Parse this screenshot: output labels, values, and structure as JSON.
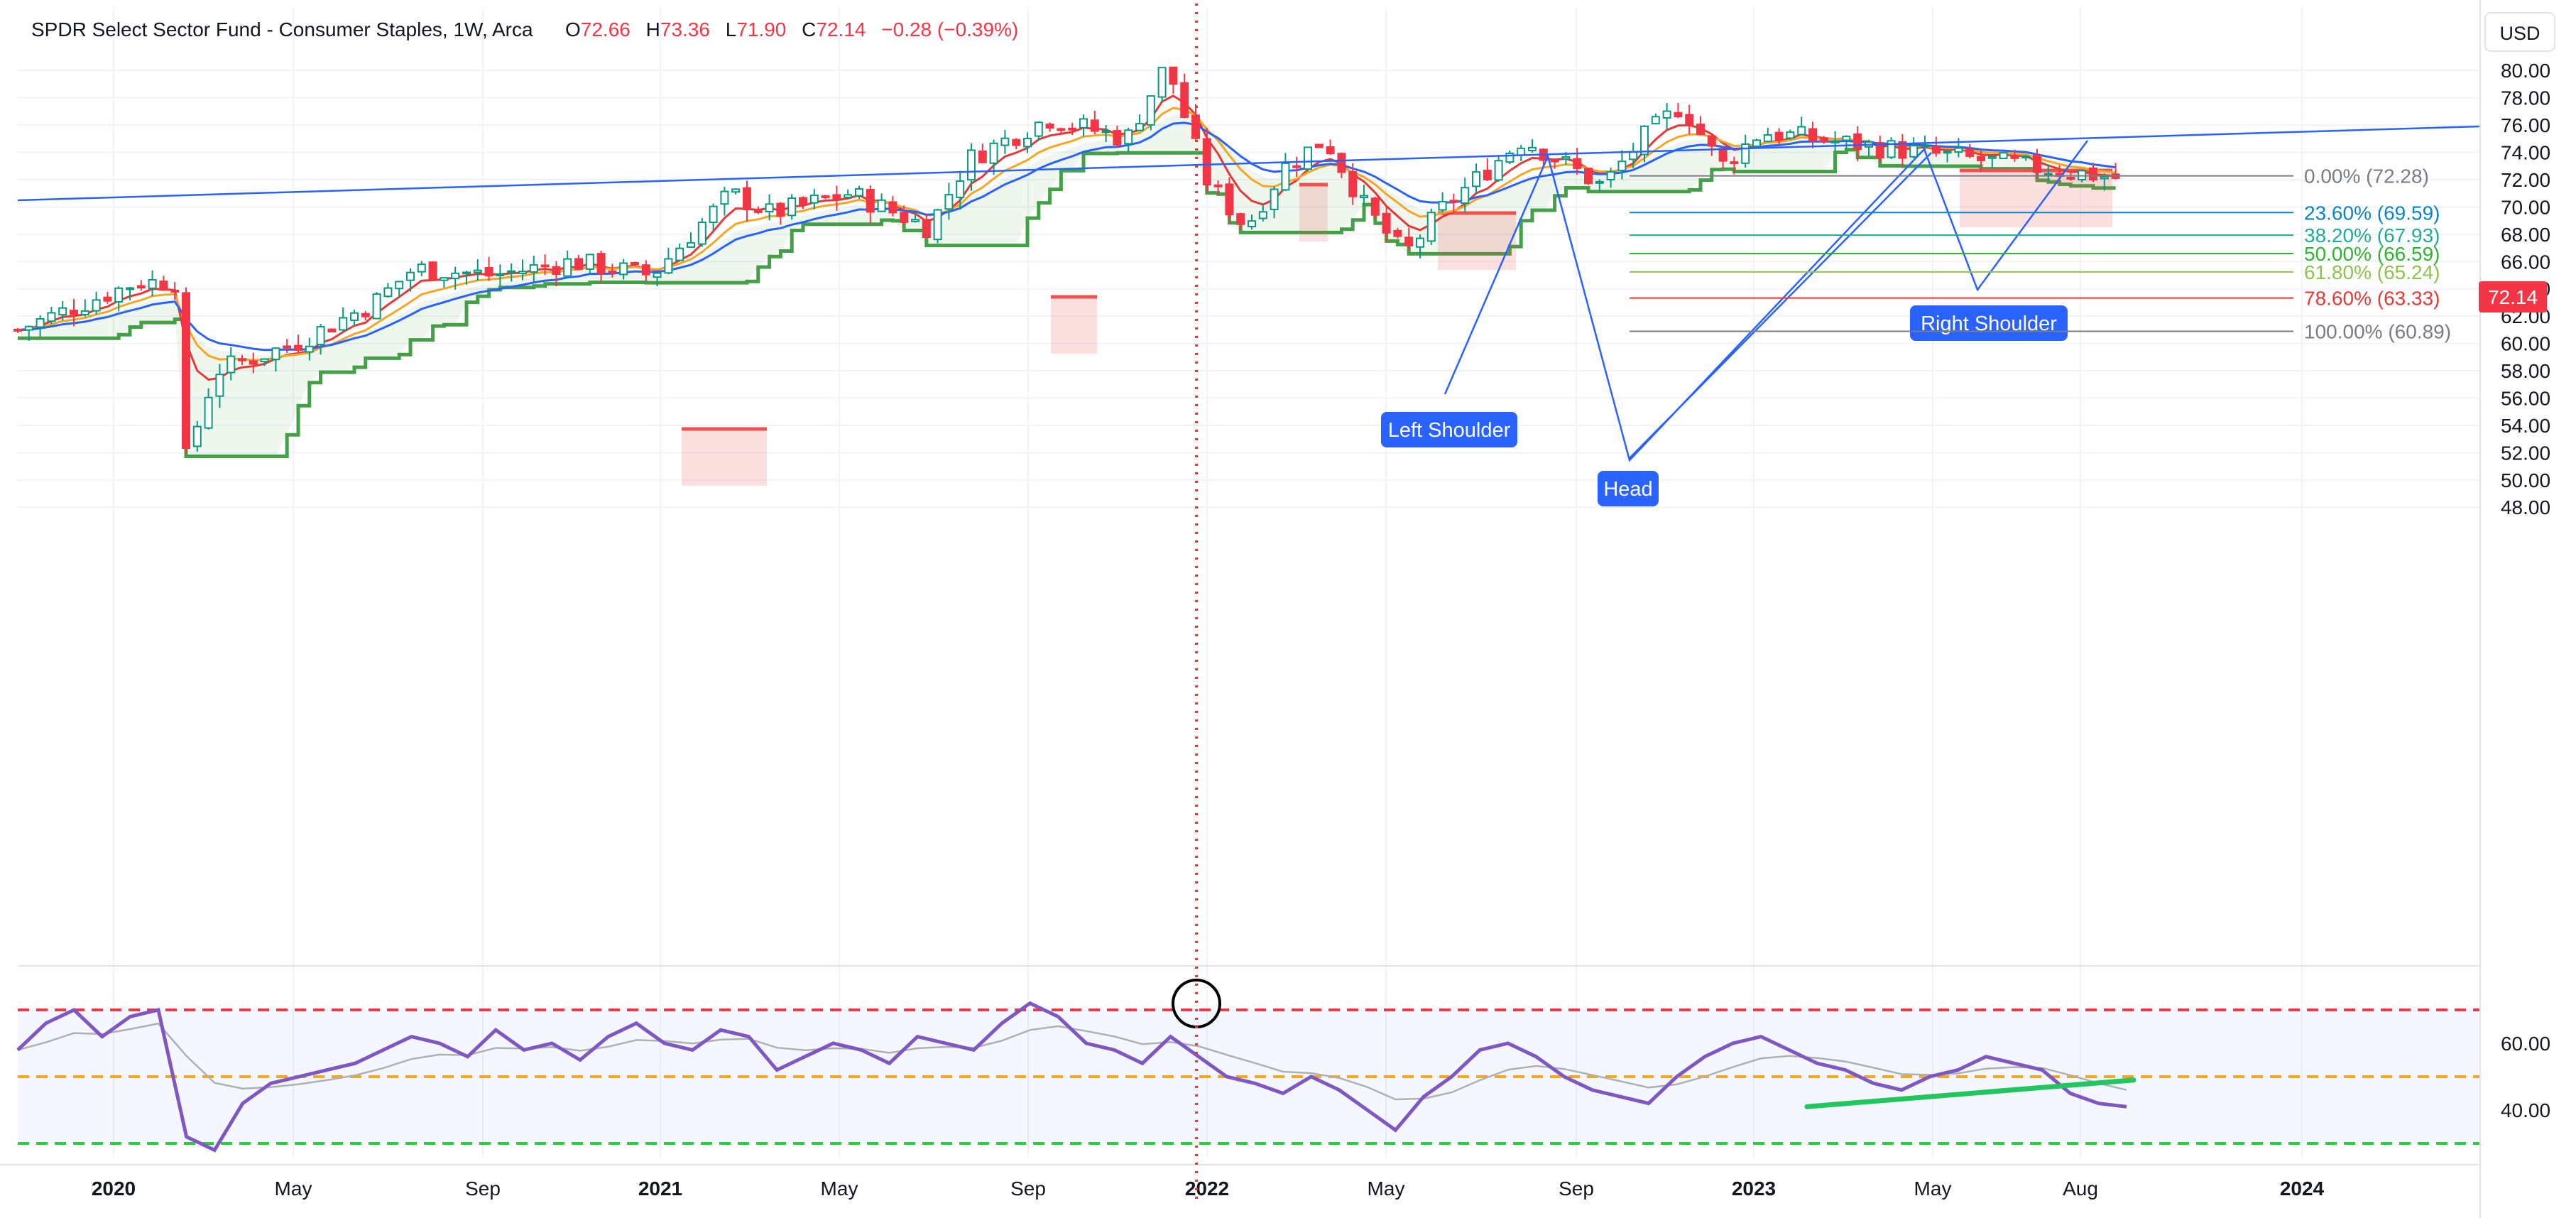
{
  "header": {
    "symbol_name": "SPDR Select Sector Fund - Consumer Staples",
    "interval": "1W",
    "exchange": "Arca",
    "open_label": "O",
    "open": "72.66",
    "high_label": "H",
    "high": "73.36",
    "low_label": "L",
    "low": "71.90",
    "close_label": "C",
    "close": "72.14",
    "change": "−0.28 (−0.39%)"
  },
  "currency": "USD",
  "last_price_tag": "72.14",
  "colors": {
    "up": "#089981",
    "down": "#f23645",
    "ema_fast": "#e53935",
    "ema_mid": "#f5a623",
    "ema_slow": "#2962ff",
    "trail_up": "#43a047",
    "trail_down": "#ef5350",
    "trendline": "#2962ff",
    "rsi_line": "#7e57c2",
    "rsi_ma": "#b0b0b0",
    "rsi_band_top": "#f23645",
    "rsi_band_mid": "#f5a623",
    "rsi_band_bot": "#2ecc40",
    "divergence": "#22c55e",
    "label_bg": "#2962ff"
  },
  "chart_data": [
    {
      "type": "line",
      "name": "price",
      "x_tick_labels": [
        "2020",
        "May",
        "Sep",
        "2021",
        "May",
        "Sep",
        "2022",
        "May",
        "Sep",
        "2023",
        "May",
        "Aug",
        "2024"
      ],
      "y_tick_labels": [
        "80.00",
        "78.00",
        "76.00",
        "74.00",
        "72.00",
        "70.00",
        "68.00",
        "66.00",
        "64.00",
        "62.00",
        "60.00",
        "58.00",
        "56.00",
        "54.00",
        "52.00",
        "50.00",
        "48.00"
      ],
      "ylim": [
        47,
        81.5
      ],
      "x": [
        "2019-12",
        "2020-02",
        "2020-03",
        "2020-03",
        "2020-04",
        "2020-06",
        "2020-08",
        "2020-09",
        "2020-11",
        "2021-01",
        "2021-03",
        "2021-05",
        "2021-06",
        "2021-08",
        "2021-10",
        "2021-11",
        "2022-01",
        "2022-03",
        "2022-04",
        "2022-05",
        "2022-06",
        "2022-07",
        "2022-08",
        "2022-09",
        "2022-10",
        "2022-11",
        "2023-01",
        "2023-03",
        "2023-04",
        "2023-05",
        "2023-06",
        "2023-07",
        "2023-08"
      ],
      "series": [
        {
          "values": [
            61,
            64.5,
            64.5,
            49.5,
            58,
            60,
            63,
            65.5,
            65,
            66,
            65,
            71,
            69.5,
            71,
            68.5,
            73.5,
            76.5,
            75,
            80.5,
            72,
            68.5,
            73,
            75,
            70,
            66.5,
            70,
            75,
            71.5,
            75,
            77.5,
            73,
            75.5,
            72.14
          ]
        }
      ],
      "horizontal_line": {
        "label": "0.00% (72.28)",
        "value": 72.28
      },
      "fibonacci_levels": [
        {
          "label": "0.00% (72.28)",
          "value": 72.28,
          "color": "#787b86"
        },
        {
          "label": "23.60% (69.59)",
          "value": 69.59,
          "color": "#0a84c8"
        },
        {
          "label": "38.20% (67.93)",
          "value": 67.93,
          "color": "#22ab94"
        },
        {
          "label": "50.00% (66.59)",
          "value": 66.59,
          "color": "#2fb430"
        },
        {
          "label": "61.80% (65.24)",
          "value": 65.24,
          "color": "#8cc34b"
        },
        {
          "label": "78.60% (63.33)",
          "value": 63.33,
          "color": "#e53935"
        },
        {
          "label": "100.00% (60.89)",
          "value": 60.89,
          "color": "#787b86"
        }
      ],
      "annotations": [
        {
          "text": "Left Shoulder",
          "x": "2022-06",
          "y": 68.4
        },
        {
          "text": "Head",
          "x": "2022-10",
          "y": 66.3
        },
        {
          "text": "Right Shoulder",
          "x": "2023-06",
          "y": 72.3
        }
      ],
      "grid": true
    },
    {
      "type": "line",
      "name": "oscillator",
      "y_tick_labels": [
        "60.00",
        "40.00"
      ],
      "ylim": [
        28,
        74
      ],
      "bands": [
        70,
        50,
        30
      ],
      "values": [
        58,
        66,
        70,
        62,
        68,
        70,
        32,
        28,
        42,
        48,
        50,
        52,
        54,
        58,
        62,
        60,
        56,
        64,
        58,
        60,
        55,
        62,
        66,
        60,
        58,
        64,
        62,
        52,
        56,
        60,
        58,
        54,
        62,
        60,
        58,
        66,
        72,
        68,
        60,
        58,
        54,
        62,
        56,
        50,
        48,
        45,
        50,
        46,
        40,
        34,
        44,
        50,
        58,
        60,
        56,
        50,
        46,
        44,
        42,
        50,
        56,
        60,
        62,
        58,
        54,
        52,
        48,
        46,
        50,
        52,
        56,
        54,
        52,
        45,
        42,
        41
      ],
      "divergence_line": {
        "from": 41,
        "to": 49
      }
    }
  ]
}
